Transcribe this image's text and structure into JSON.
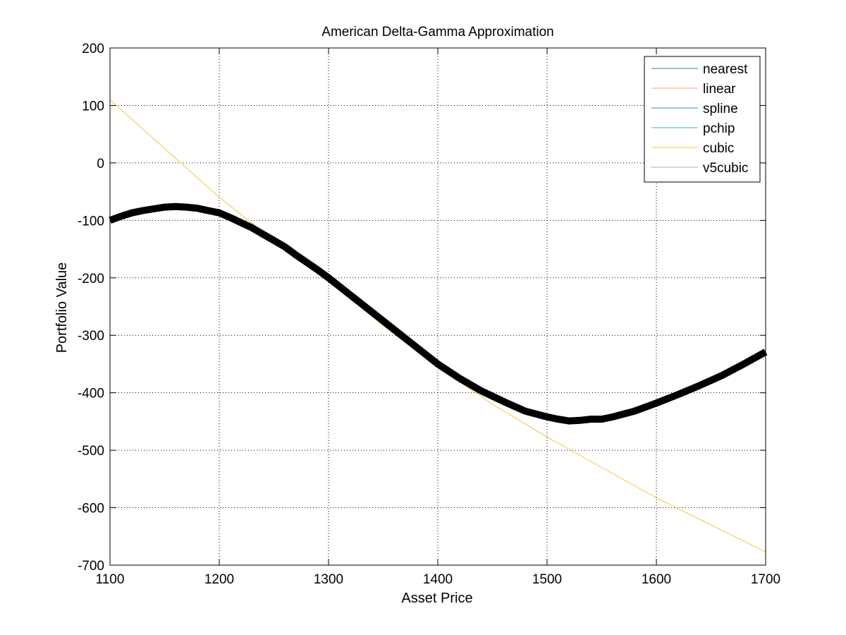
{
  "chart_data": {
    "type": "line",
    "title": "American Delta-Gamma Approximation",
    "xlabel": "Asset Price",
    "ylabel": "Portfolio Value",
    "xlim": [
      1100,
      1700
    ],
    "ylim": [
      -700,
      200
    ],
    "xticks": [
      1100,
      1200,
      1300,
      1400,
      1500,
      1600,
      1700
    ],
    "yticks": [
      200,
      100,
      0,
      -100,
      -200,
      -300,
      -400,
      -500,
      -600,
      -700
    ],
    "grid": true,
    "legend_position": "top-right",
    "legend": [
      "nearest",
      "linear",
      "spline",
      "pchip",
      "cubic",
      "v5cubic"
    ],
    "series": [
      {
        "name": "nearest",
        "color": "#2e8b7a",
        "x": [
          1100,
          1150,
          1200,
          1250,
          1300,
          1350,
          1400,
          1450,
          1500,
          1550,
          1600,
          1650,
          1700
        ],
        "y": [
          -100,
          -77,
          -87,
          -135,
          -200,
          -275,
          -350,
          -408,
          -442,
          -446,
          -418,
          -377,
          -329
        ]
      },
      {
        "name": "linear",
        "color": "#f4a582",
        "x": [
          1100,
          1150,
          1200,
          1250,
          1300,
          1350,
          1400,
          1450,
          1500,
          1550,
          1600,
          1650,
          1700
        ],
        "y": [
          -100,
          -77,
          -87,
          -135,
          -200,
          -275,
          -350,
          -408,
          -442,
          -446,
          -418,
          -377,
          -329
        ]
      },
      {
        "name": "spline",
        "color": "#3b7fd6",
        "x": [
          1100,
          1150,
          1200,
          1250,
          1300,
          1350,
          1400,
          1450,
          1500,
          1550,
          1600,
          1650,
          1700
        ],
        "y": [
          -100,
          -77,
          -87,
          -135,
          -200,
          -275,
          -350,
          -408,
          -442,
          -446,
          -418,
          -377,
          -329
        ]
      },
      {
        "name": "pchip",
        "color": "#2ecc71",
        "x": [
          1100,
          1150,
          1200,
          1250,
          1300,
          1350,
          1400,
          1450,
          1500,
          1550,
          1600,
          1650,
          1700
        ],
        "y": [
          -100,
          -77,
          -87,
          -135,
          -200,
          -275,
          -350,
          -408,
          -442,
          -446,
          -418,
          -377,
          -329
        ]
      },
      {
        "name": "cubic",
        "color": "#f5c542",
        "x": [
          1100,
          1150,
          1200,
          1250,
          1300,
          1350,
          1400,
          1450,
          1500,
          1550,
          1600,
          1650,
          1700
        ],
        "y": [
          110,
          25,
          -60,
          -135,
          -205,
          -283,
          -355,
          -420,
          -477,
          -530,
          -583,
          -630,
          -677
        ]
      },
      {
        "name": "v5cubic",
        "color": "#c39bd3",
        "x": [
          1100,
          1150,
          1200,
          1250,
          1300,
          1350,
          1400,
          1450,
          1500,
          1550,
          1600,
          1650,
          1700
        ],
        "y": [
          -100,
          -77,
          -87,
          -135,
          -200,
          -275,
          -350,
          -408,
          -442,
          -446,
          -418,
          -377,
          -329
        ]
      }
    ],
    "portfolio_curve": {
      "color": "#000000",
      "x": [
        1100,
        1110,
        1120,
        1130,
        1140,
        1150,
        1160,
        1170,
        1180,
        1190,
        1200,
        1210,
        1220,
        1230,
        1240,
        1250,
        1260,
        1270,
        1280,
        1290,
        1300,
        1320,
        1340,
        1360,
        1380,
        1400,
        1420,
        1440,
        1460,
        1480,
        1500,
        1510,
        1520,
        1530,
        1540,
        1550,
        1560,
        1580,
        1600,
        1620,
        1640,
        1660,
        1680,
        1700
      ],
      "y": [
        -100,
        -93,
        -87,
        -83,
        -80,
        -77,
        -76,
        -77,
        -79,
        -83,
        -87,
        -95,
        -104,
        -113,
        -124,
        -135,
        -146,
        -160,
        -173,
        -186,
        -200,
        -230,
        -260,
        -290,
        -320,
        -350,
        -375,
        -397,
        -415,
        -432,
        -442,
        -446,
        -449,
        -448,
        -446,
        -446,
        -442,
        -432,
        -418,
        -403,
        -387,
        -370,
        -350,
        -329
      ]
    }
  }
}
